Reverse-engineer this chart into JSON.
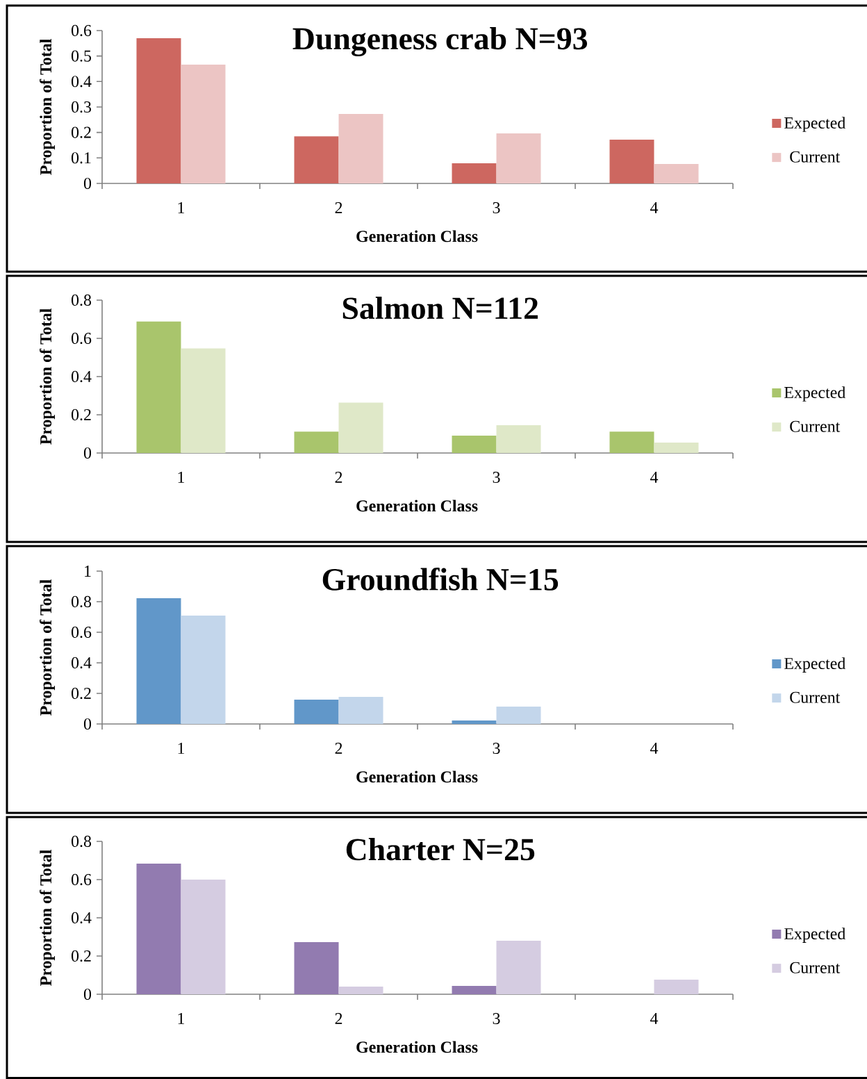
{
  "chart_data": [
    {
      "type": "bar",
      "title": "Dungeness crab N=93",
      "xlabel": "Generation Class",
      "ylabel": "Proportion of Total",
      "categories": [
        "1",
        "2",
        "3",
        "4"
      ],
      "ylim": [
        0,
        0.6
      ],
      "yticks": [
        0,
        0.1,
        0.2,
        0.3,
        0.4,
        0.5,
        0.6
      ],
      "legend": "right",
      "series": [
        {
          "name": "Expected",
          "color": "#cd6760",
          "values": [
            0.57,
            0.185,
            0.079,
            0.172
          ]
        },
        {
          "name": "Current",
          "color": "#ecc5c4",
          "values": [
            0.466,
            0.273,
            0.196,
            0.076
          ]
        }
      ]
    },
    {
      "type": "bar",
      "title": "Salmon N=112",
      "xlabel": "Generation Class",
      "ylabel": "Proportion of Total",
      "categories": [
        "1",
        "2",
        "3",
        "4"
      ],
      "ylim": [
        0,
        0.8
      ],
      "yticks": [
        0,
        0.2,
        0.4,
        0.6,
        0.8
      ],
      "legend": "right",
      "series": [
        {
          "name": "Expected",
          "color": "#a9c56c",
          "values": [
            0.688,
            0.112,
            0.091,
            0.112
          ]
        },
        {
          "name": "Current",
          "color": "#dfe8c8",
          "values": [
            0.547,
            0.264,
            0.145,
            0.054
          ]
        }
      ]
    },
    {
      "type": "bar",
      "title": "Groundfish N=15",
      "xlabel": "Generation Class",
      "ylabel": "Proportion of Total",
      "categories": [
        "1",
        "2",
        "3",
        "4"
      ],
      "ylim": [
        0,
        1
      ],
      "yticks": [
        0,
        0.2,
        0.4,
        0.6,
        0.8,
        1
      ],
      "legend": "right",
      "series": [
        {
          "name": "Expected",
          "color": "#6197c9",
          "values": [
            0.823,
            0.159,
            0.023,
            0
          ]
        },
        {
          "name": "Current",
          "color": "#c3d6eb",
          "values": [
            0.709,
            0.177,
            0.114,
            0
          ]
        }
      ]
    },
    {
      "type": "bar",
      "title": "Charter N=25",
      "xlabel": "Generation Class",
      "ylabel": "Proportion of Total",
      "categories": [
        "1",
        "2",
        "3",
        "4"
      ],
      "ylim": [
        0,
        0.8
      ],
      "yticks": [
        0,
        0.2,
        0.4,
        0.6,
        0.8
      ],
      "legend": "right",
      "series": [
        {
          "name": "Expected",
          "color": "#927bb0",
          "values": [
            0.684,
            0.273,
            0.044,
            0
          ]
        },
        {
          "name": "Current",
          "color": "#d5cce1",
          "values": [
            0.6,
            0.04,
            0.28,
            0.076
          ]
        }
      ]
    }
  ]
}
